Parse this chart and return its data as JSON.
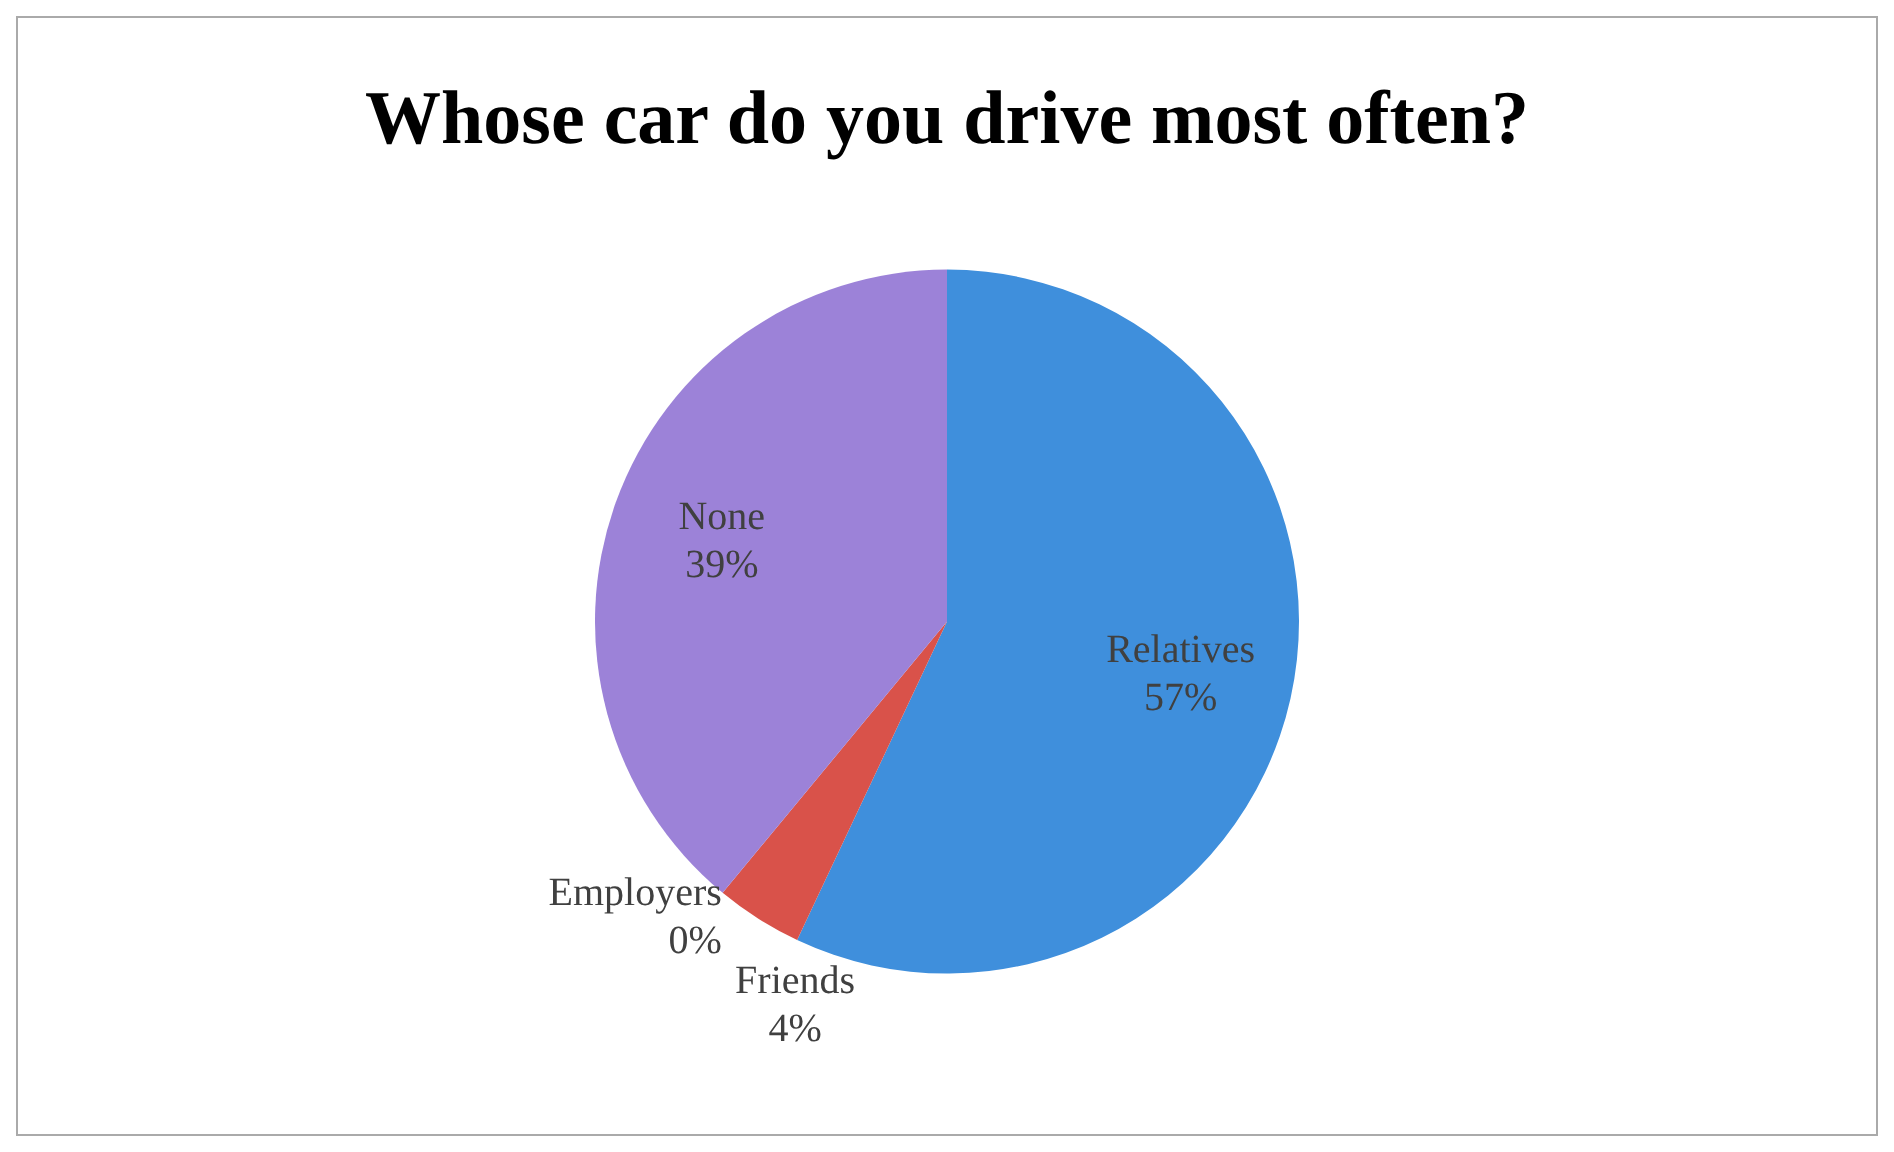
{
  "chart_data": {
    "type": "pie",
    "title": "Whose car do you drive most often?",
    "categories": [
      "Relatives",
      "Employers",
      "Friends",
      "None"
    ],
    "values": [
      57,
      0,
      4,
      39
    ],
    "colors": [
      "#3f8fdc",
      "#8fb050",
      "#d9524a",
      "#9c82d8"
    ],
    "value_labels": [
      "57%",
      "0%",
      "4%",
      "39%"
    ],
    "legend": false
  }
}
